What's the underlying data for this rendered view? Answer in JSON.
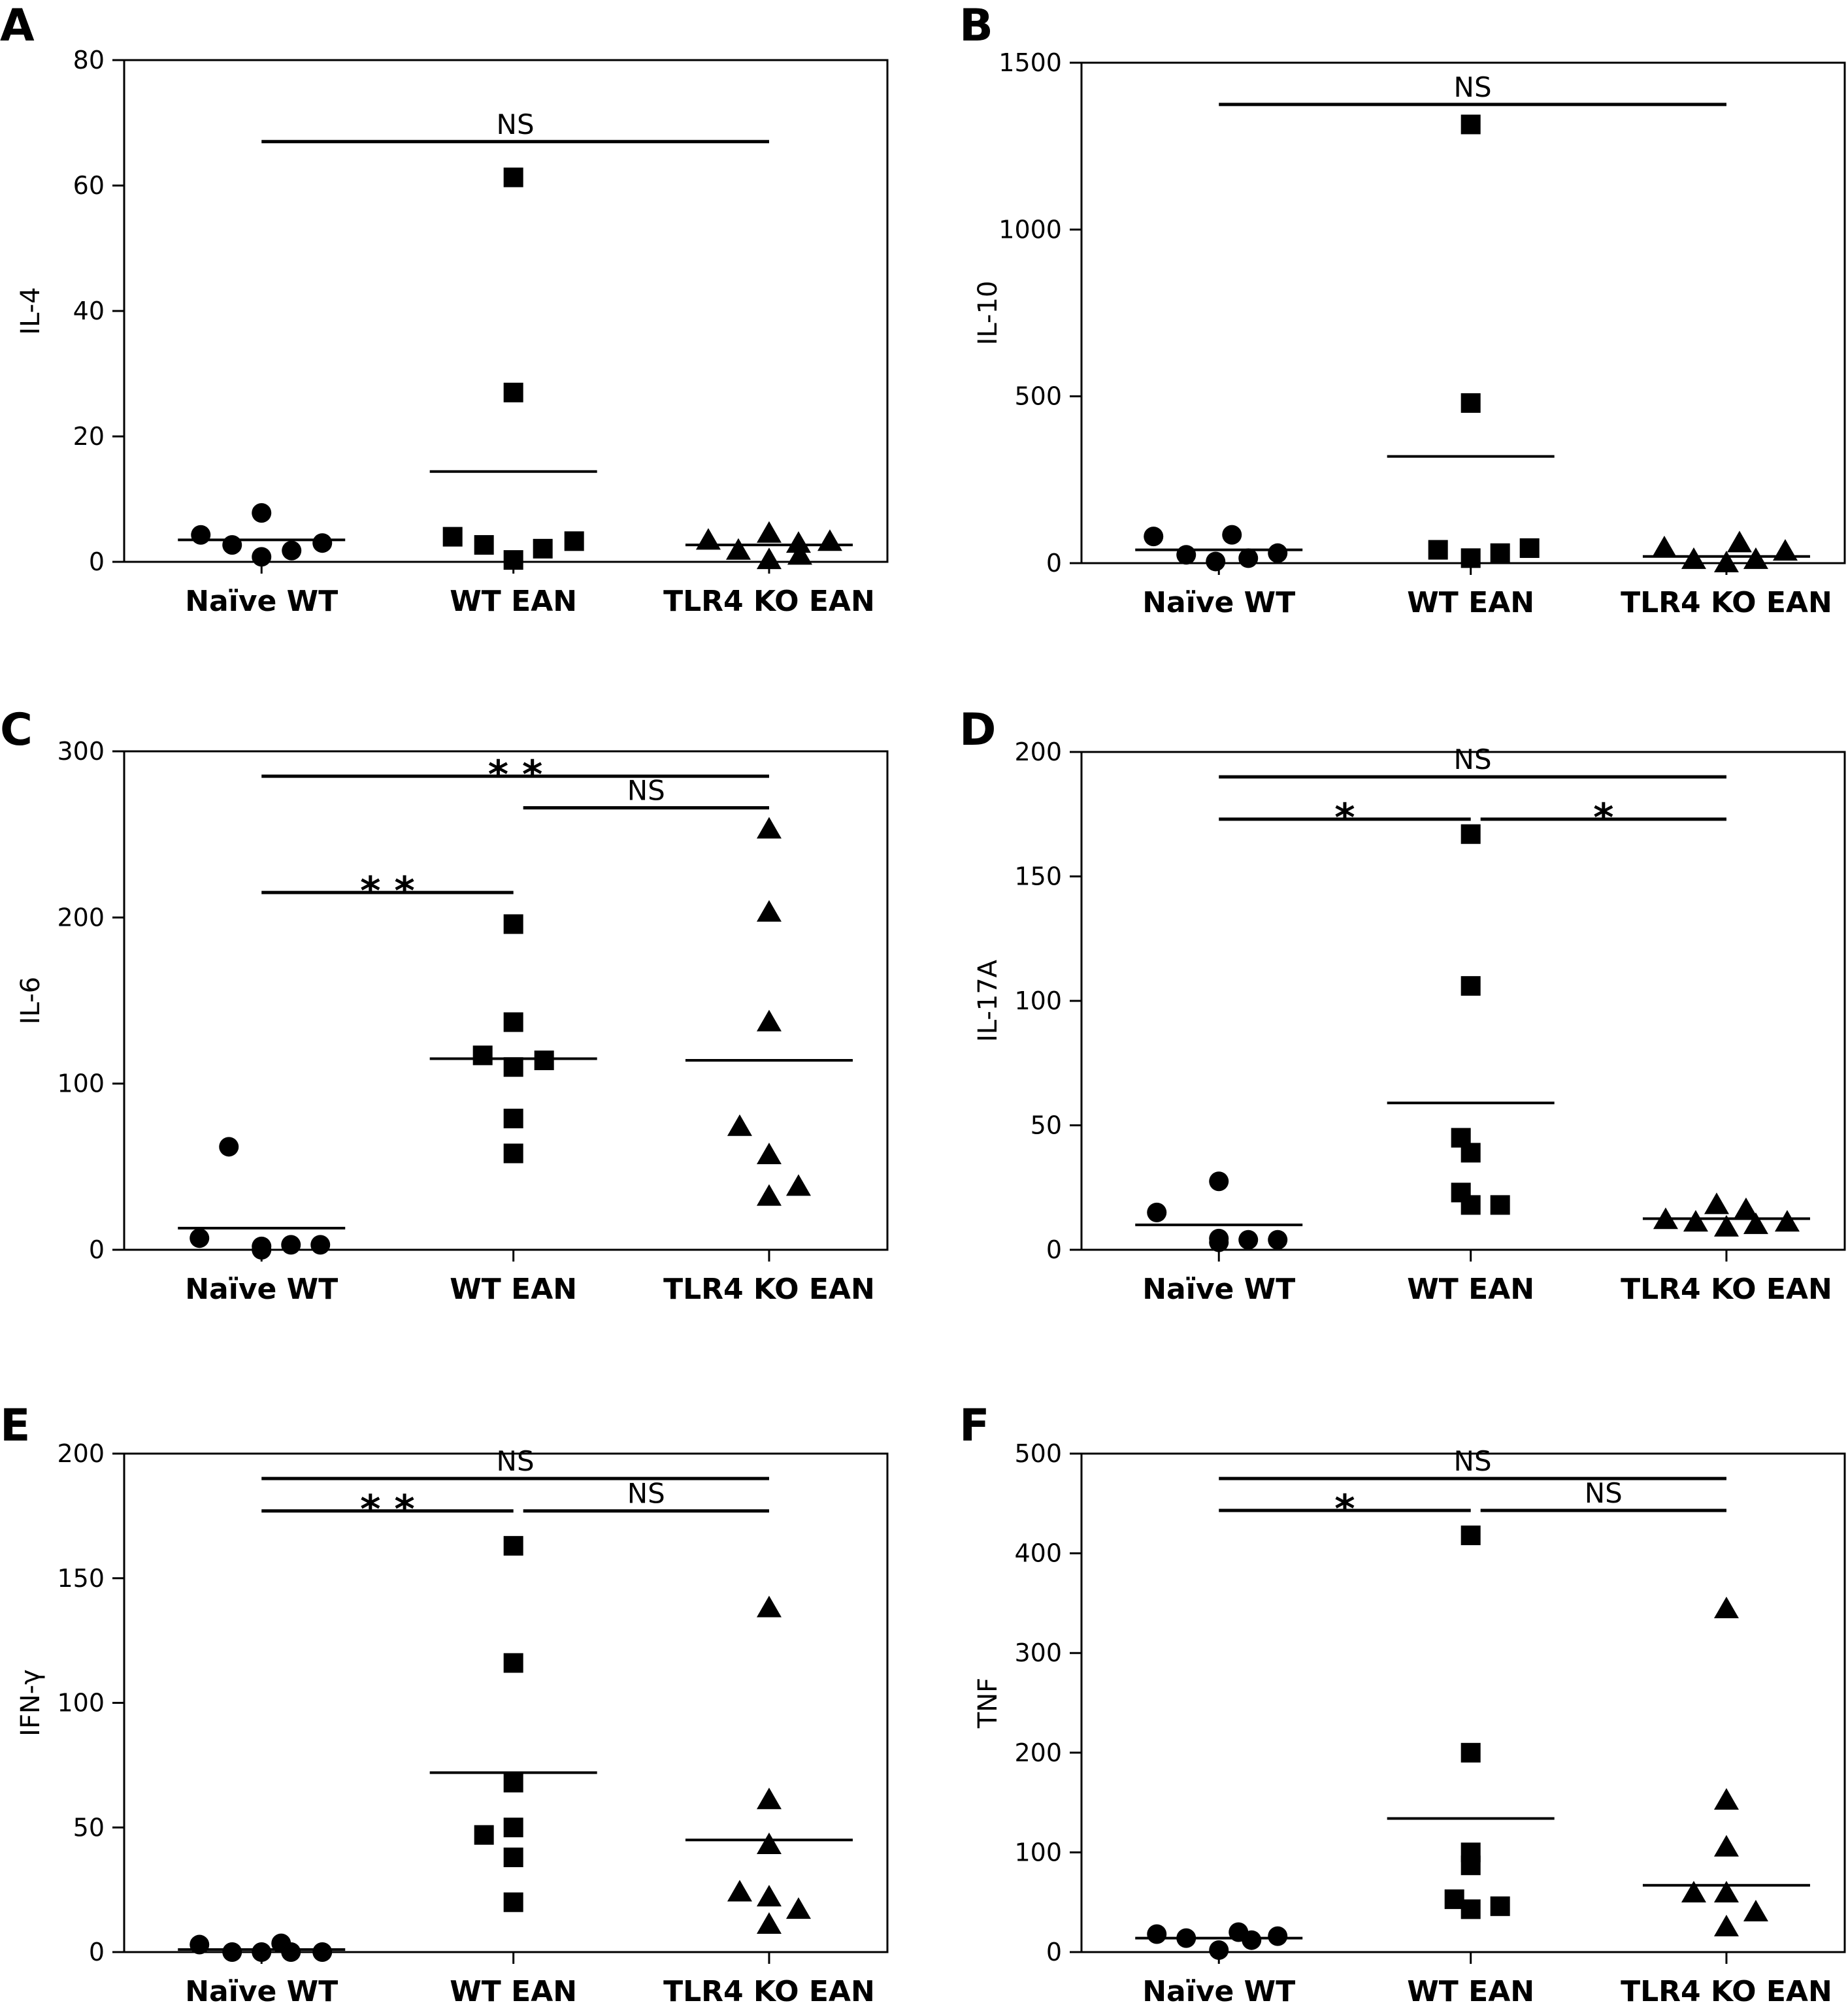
{
  "chart_data": [
    {
      "panel": "A",
      "type": "scatter",
      "ylabel": "IL-4",
      "ylim": [
        0,
        80
      ],
      "yticks": [
        0,
        20,
        40,
        60,
        80
      ],
      "categories": [
        "Naïve WT",
        "WT EAN",
        "TLR4 KO EAN"
      ],
      "series": [
        {
          "group": "Naïve WT",
          "marker": "circle",
          "values": [
            4.3,
            2.7,
            0.8,
            7.8,
            1.8,
            3.0
          ],
          "median": 3.5
        },
        {
          "group": "WT EAN",
          "marker": "square",
          "values": [
            61.3,
            27.0,
            4.0,
            2.7,
            0.3,
            2.1,
            3.3
          ],
          "median": 14.4
        },
        {
          "group": "TLR4 KO EAN",
          "marker": "triangle",
          "values": [
            3.4,
            1.8,
            4.5,
            0.3,
            2.9,
            1.0,
            3.2
          ],
          "median": 2.7
        }
      ],
      "significance": [
        {
          "from": 0,
          "to": 2,
          "label": "NS",
          "y": 67
        }
      ]
    },
    {
      "panel": "B",
      "type": "scatter",
      "ylabel": "IL-10",
      "ylim": [
        0,
        1500
      ],
      "yticks": [
        0,
        500,
        1000,
        1500
      ],
      "categories": [
        "Naïve WT",
        "WT EAN",
        "TLR4 KO EAN"
      ],
      "series": [
        {
          "group": "Naïve WT",
          "marker": "circle",
          "values": [
            80,
            25,
            5,
            85,
            15,
            30
          ],
          "median": 40
        },
        {
          "group": "WT EAN",
          "marker": "square",
          "values": [
            1315,
            480,
            40,
            15,
            30,
            45
          ],
          "median": 320
        },
        {
          "group": "TLR4 KO EAN",
          "marker": "triangle",
          "values": [
            45,
            10,
            0,
            60,
            10,
            35
          ],
          "median": 20
        }
      ],
      "significance": [
        {
          "from": 0,
          "to": 2,
          "label": "NS",
          "y": 1375
        }
      ]
    },
    {
      "panel": "C",
      "type": "scatter",
      "ylabel": "IL-6",
      "ylim": [
        0,
        300
      ],
      "yticks": [
        0,
        100,
        200,
        300
      ],
      "categories": [
        "Naïve WT",
        "WT EAN",
        "TLR4 KO EAN"
      ],
      "series": [
        {
          "group": "Naïve WT",
          "marker": "circle",
          "values": [
            7,
            62,
            2,
            0,
            3,
            3
          ],
          "median": 13
        },
        {
          "group": "WT EAN",
          "marker": "square",
          "values": [
            196,
            137,
            117,
            110,
            114,
            79,
            58
          ],
          "median": 115
        },
        {
          "group": "TLR4 KO EAN",
          "marker": "triangle",
          "values": [
            253,
            203,
            137,
            74,
            57,
            32,
            38
          ],
          "median": 114
        }
      ],
      "significance": [
        {
          "from": 0,
          "to": 2,
          "label": "* *",
          "y": 285
        },
        {
          "from": 1,
          "to": 2,
          "label": "NS",
          "y": 266
        },
        {
          "from": 0,
          "to": 1,
          "label": "* *",
          "y": 215
        }
      ]
    },
    {
      "panel": "D",
      "type": "scatter",
      "ylabel": "IL-17A",
      "ylim": [
        0,
        200
      ],
      "yticks": [
        0,
        50,
        100,
        150,
        200
      ],
      "categories": [
        "Naïve WT",
        "WT EAN",
        "TLR4 KO EAN"
      ],
      "series": [
        {
          "group": "Naïve WT",
          "marker": "circle",
          "values": [
            15,
            4.5,
            27.5,
            3,
            4,
            4
          ],
          "median": 10
        },
        {
          "group": "WT EAN",
          "marker": "square",
          "values": [
            167,
            106,
            45,
            39,
            23,
            18,
            18
          ],
          "median": 59
        },
        {
          "group": "TLR4 KO EAN",
          "marker": "triangle",
          "values": [
            12,
            11,
            18,
            9,
            16,
            10,
            11
          ],
          "median": 12.5
        }
      ],
      "significance": [
        {
          "from": 0,
          "to": 2,
          "label": "NS",
          "y": 190
        },
        {
          "from": 0,
          "to": 1,
          "label": "*",
          "y": 173
        },
        {
          "from": 1,
          "to": 2,
          "label": "*",
          "y": 173
        }
      ]
    },
    {
      "panel": "E",
      "type": "scatter",
      "ylabel": "IFN-γ",
      "ylim": [
        0,
        200
      ],
      "yticks": [
        0,
        50,
        100,
        150,
        200
      ],
      "categories": [
        "Naïve WT",
        "WT EAN",
        "TLR4 KO EAN"
      ],
      "series": [
        {
          "group": "Naïve WT",
          "marker": "circle",
          "values": [
            3,
            0,
            0,
            3.5,
            0,
            0
          ],
          "median": 1
        },
        {
          "group": "WT EAN",
          "marker": "square",
          "values": [
            163,
            116,
            68,
            50,
            47,
            38,
            20
          ],
          "median": 72
        },
        {
          "group": "TLR4 KO EAN",
          "marker": "triangle",
          "values": [
            138,
            61,
            43,
            24,
            22,
            11,
            17
          ],
          "median": 45
        }
      ],
      "significance": [
        {
          "from": 0,
          "to": 2,
          "label": "NS",
          "y": 190
        },
        {
          "from": 0,
          "to": 1,
          "label": "* *",
          "y": 177
        },
        {
          "from": 1,
          "to": 2,
          "label": "NS",
          "y": 177
        }
      ]
    },
    {
      "panel": "F",
      "type": "scatter",
      "ylabel": "TNF",
      "ylim": [
        0,
        500
      ],
      "yticks": [
        0,
        100,
        200,
        300,
        400,
        500
      ],
      "categories": [
        "Naïve WT",
        "WT EAN",
        "TLR4 KO EAN"
      ],
      "series": [
        {
          "group": "Naïve WT",
          "marker": "circle",
          "values": [
            18,
            14,
            2,
            20,
            12,
            16
          ],
          "median": 14
        },
        {
          "group": "WT EAN",
          "marker": "square",
          "values": [
            418,
            200,
            100,
            87,
            53,
            43,
            46
          ],
          "median": 134
        },
        {
          "group": "TLR4 KO EAN",
          "marker": "triangle",
          "values": [
            344,
            152,
            105,
            59,
            59,
            25,
            40
          ],
          "median": 67
        }
      ],
      "significance": [
        {
          "from": 0,
          "to": 2,
          "label": "NS",
          "y": 475
        },
        {
          "from": 0,
          "to": 1,
          "label": "*",
          "y": 443
        },
        {
          "from": 1,
          "to": 2,
          "label": "NS",
          "y": 443
        }
      ]
    }
  ]
}
